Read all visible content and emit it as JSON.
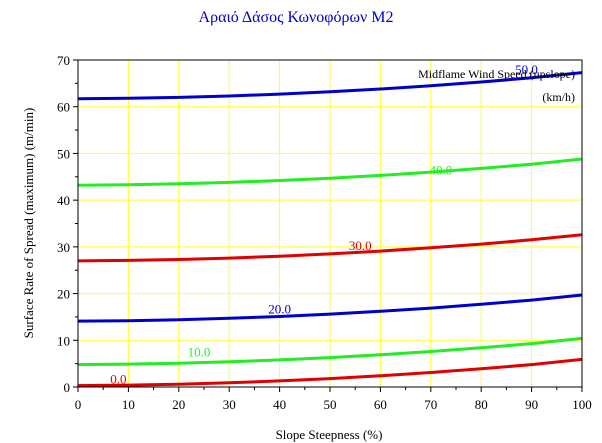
{
  "chart_data": {
    "type": "line",
    "title": "Αραιό Δάσος Κωνοφόρων Μ2",
    "xlabel": "Slope Steepness (%)",
    "ylabel": "Surface Rate of Spread (maximum) (m/min)",
    "xlim": [
      0,
      100
    ],
    "ylim": [
      0,
      70
    ],
    "xticks": [
      "0",
      "10",
      "20",
      "30",
      "40",
      "50",
      "60",
      "70",
      "80",
      "90",
      "100"
    ],
    "yticks": [
      "0",
      "10",
      "20",
      "30",
      "40",
      "50",
      "60",
      "70"
    ],
    "grid": true,
    "legend_title_line1": "Midflame Wind Speed (upslope)",
    "legend_title_line2": "(km/h)",
    "x": [
      0,
      10,
      20,
      30,
      40,
      50,
      60,
      70,
      80,
      90,
      100
    ],
    "series": [
      {
        "name": "0.0",
        "color": "#e00000",
        "label_at": [
          8,
          0.8
        ],
        "values": [
          0.3,
          0.4,
          0.6,
          0.9,
          1.3,
          1.8,
          2.4,
          3.1,
          3.9,
          4.8,
          5.9
        ]
      },
      {
        "name": "10.0",
        "color": "#22ee22",
        "label_at": [
          24,
          6.5
        ],
        "values": [
          4.8,
          4.9,
          5.1,
          5.4,
          5.8,
          6.3,
          6.9,
          7.6,
          8.4,
          9.3,
          10.4
        ]
      },
      {
        "name": "20.0",
        "color": "#0000cc",
        "label_at": [
          40,
          15.7
        ],
        "values": [
          14.1,
          14.2,
          14.4,
          14.7,
          15.1,
          15.6,
          16.2,
          16.9,
          17.7,
          18.6,
          19.7
        ]
      },
      {
        "name": "30.0",
        "color": "#e00000",
        "label_at": [
          56,
          29.3
        ],
        "values": [
          27.0,
          27.1,
          27.3,
          27.6,
          28.0,
          28.5,
          29.1,
          29.8,
          30.6,
          31.5,
          32.6
        ]
      },
      {
        "name": "40.0",
        "color": "#22ee22",
        "label_at": [
          72,
          45.5
        ],
        "values": [
          43.2,
          43.3,
          43.5,
          43.8,
          44.2,
          44.7,
          45.3,
          46.0,
          46.8,
          47.7,
          48.8
        ]
      },
      {
        "name": "50.0",
        "color": "#0000cc",
        "label_at": [
          89,
          67.0
        ],
        "values": [
          61.7,
          61.8,
          62.0,
          62.3,
          62.7,
          63.2,
          63.8,
          64.5,
          65.3,
          66.2,
          67.3
        ]
      }
    ]
  }
}
